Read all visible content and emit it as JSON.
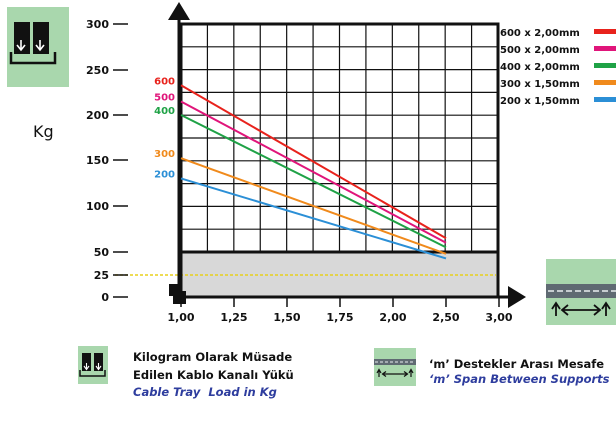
{
  "chart_data": {
    "type": "line",
    "title": "",
    "xlabel": "",
    "ylabel": "Kg",
    "x_ticks": [
      "1,00",
      "1,25",
      "1,50",
      "1,75",
      "2,00",
      "2,50",
      "3,00"
    ],
    "y_ticks": [
      "300",
      "250",
      "200",
      "150",
      "100",
      "50",
      "25",
      "0"
    ],
    "y_tick_values": [
      300,
      250,
      200,
      150,
      100,
      50,
      25,
      0
    ],
    "xlim": [
      1.0,
      3.0
    ],
    "ylim": [
      0,
      300
    ],
    "grid": true,
    "legend_position": "top-right",
    "reference_line": {
      "value": 25,
      "color": "#e8d01c"
    },
    "shaded_region": {
      "from": 0,
      "to": 50,
      "color": "#d8d8d8"
    },
    "series": [
      {
        "name": "600 x 2,00mm",
        "end_label": "600",
        "color": "#e8221c",
        "x": [
          1.0,
          2.5
        ],
        "y": [
          233,
          65
        ]
      },
      {
        "name": "500 x 2,00mm",
        "end_label": "500",
        "color": "#e0157a",
        "x": [
          1.0,
          2.5
        ],
        "y": [
          215,
          60
        ]
      },
      {
        "name": "400 x 2,00mm",
        "end_label": "400",
        "color": "#1fa246",
        "x": [
          1.0,
          2.5
        ],
        "y": [
          200,
          55
        ]
      },
      {
        "name": "300 x 1,50mm",
        "end_label": "300",
        "color": "#f08a1c",
        "x": [
          1.0,
          2.5
        ],
        "y": [
          152,
          48
        ]
      },
      {
        "name": "200 x 1,50mm",
        "end_label": "200",
        "color": "#2b8fd6",
        "x": [
          1.0,
          2.5
        ],
        "y": [
          130,
          43
        ]
      }
    ]
  },
  "icons": {
    "load_icon": "cable-tray-load-icon",
    "span_icon": "support-span-icon",
    "panel_color": "#a9d7ad"
  },
  "captions": {
    "load_tr_line1": "Kilogram Olarak Müsade",
    "load_tr_line2": "Edilen Kablo Kanalı Yükü",
    "load_en": "Cable Tray  Load in Kg",
    "span_tr": "‘m’ Destekler Arası Mesafe",
    "span_en": "‘m’ Span Between Supports"
  }
}
